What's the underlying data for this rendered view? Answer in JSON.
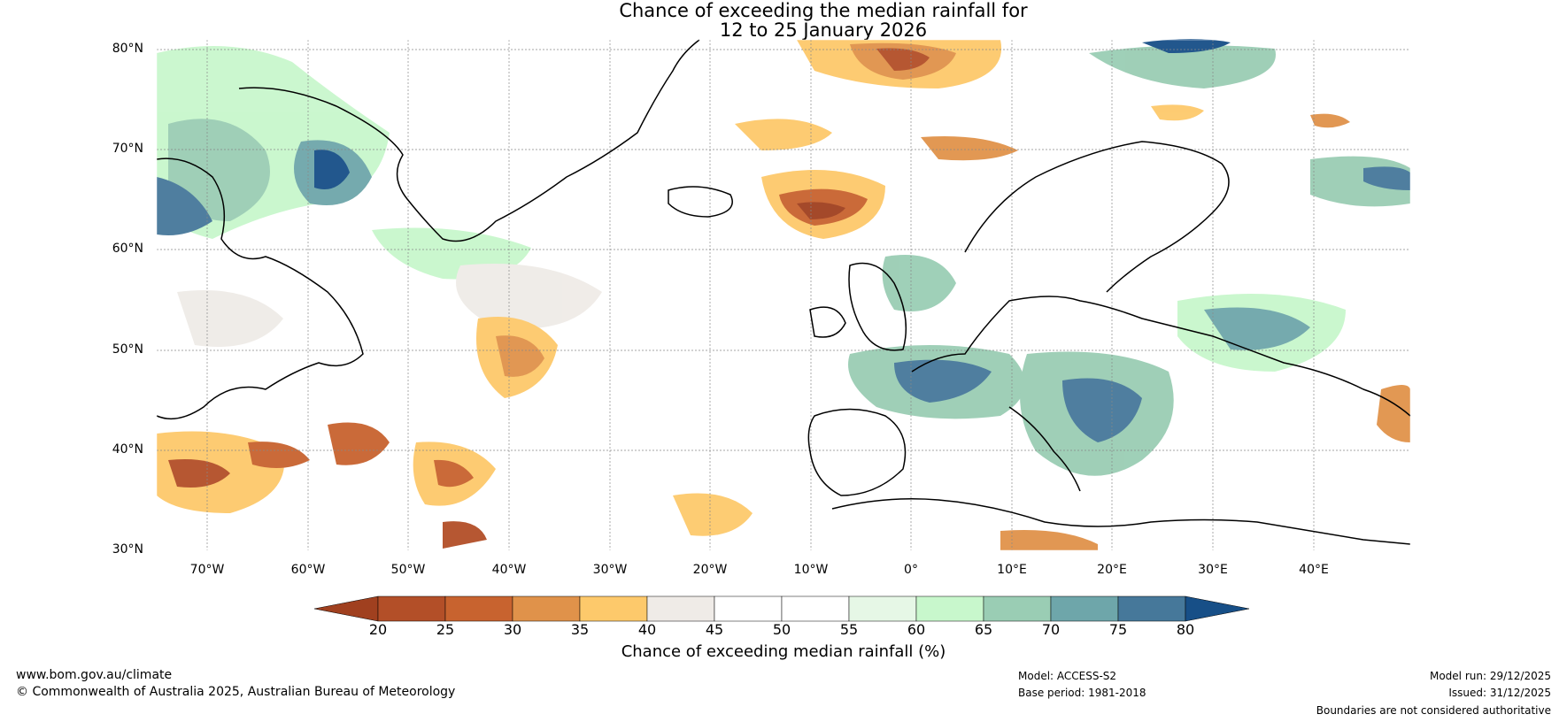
{
  "title": {
    "line1": "Chance of exceeding the median rainfall for",
    "line2": "12 to 25 January 2026"
  },
  "map": {
    "lat_labels": [
      "80°N",
      "70°N",
      "60°N",
      "50°N",
      "40°N",
      "30°N"
    ],
    "lon_labels": [
      "70°W",
      "60°W",
      "50°W",
      "40°W",
      "30°W",
      "20°W",
      "10°W",
      "0°",
      "10°E",
      "20°E",
      "30°E",
      "40°E"
    ]
  },
  "colorbar": {
    "ticks": [
      "20",
      "25",
      "30",
      "35",
      "40",
      "45",
      "50",
      "55",
      "60",
      "65",
      "70",
      "75",
      "80"
    ],
    "colors": [
      "#a0401f",
      "#b34f28",
      "#c8632f",
      "#e0924a",
      "#fdc96b",
      "#efebe7",
      "#ffffff",
      "#ffffff",
      "#e6f7e6",
      "#c8f7cc",
      "#9acdb4",
      "#6ea6aa",
      "#46789a",
      "#174f87"
    ],
    "label": "Chance of exceeding median rainfall (%)"
  },
  "footer": {
    "website": "www.bom.gov.au/climate",
    "copyright": "© Commonwealth of Australia 2025, Australian Bureau of Meteorology",
    "model": "Model: ACCESS-S2",
    "base_period": "Base period: 1981-2018",
    "model_run": "Model run: 29/12/2025",
    "issued": "Issued: 31/12/2025",
    "disclaimer": "Boundaries are not considered authoritative"
  }
}
